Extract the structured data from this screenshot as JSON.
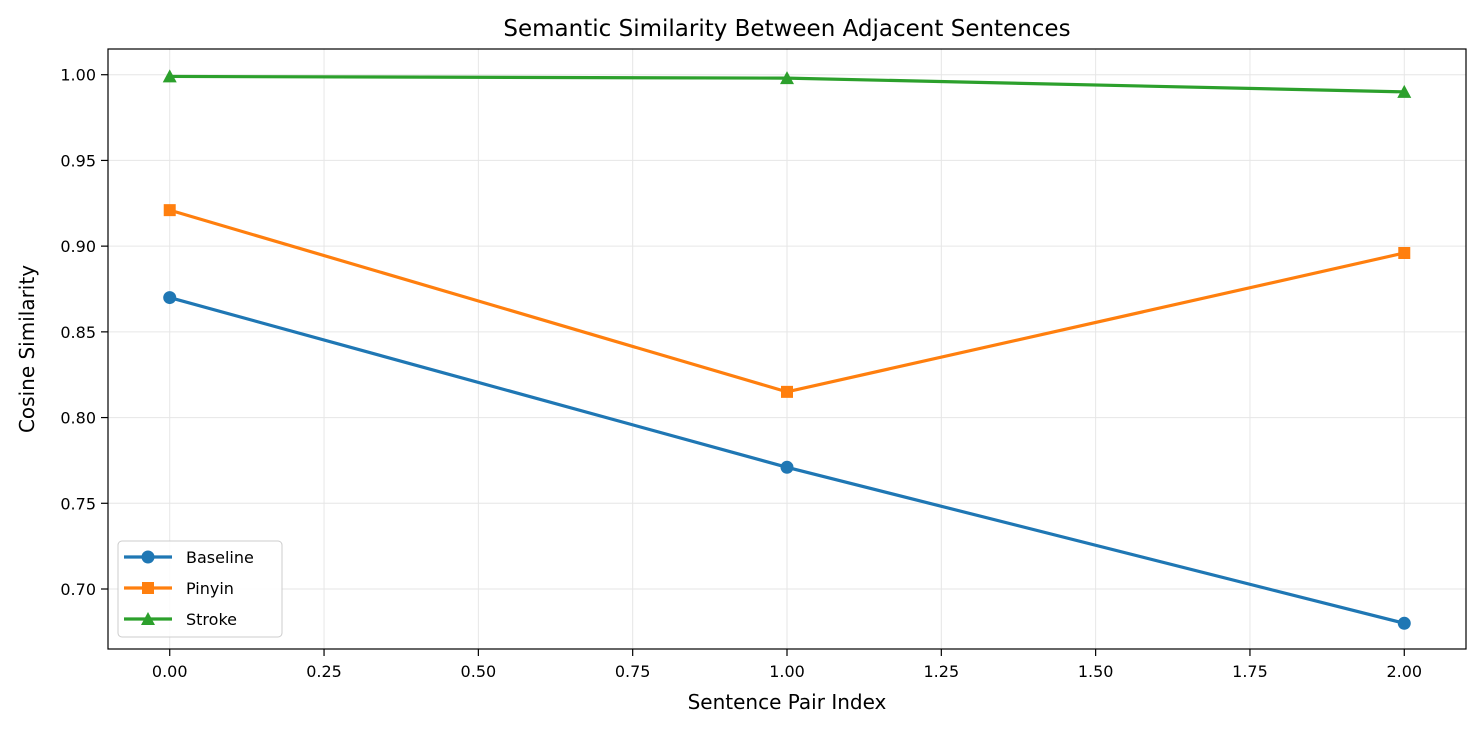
{
  "chart_data": {
    "type": "line",
    "title": "Semantic Similarity Between Adjacent Sentences",
    "xlabel": "Sentence Pair Index",
    "ylabel": "Cosine Similarity",
    "x": [
      0,
      1,
      2
    ],
    "xlim": [
      -0.1,
      2.1
    ],
    "ylim": [
      0.665,
      1.015
    ],
    "xticks": [
      0,
      0.25,
      0.5,
      0.75,
      1.0,
      1.25,
      1.5,
      1.75,
      2.0
    ],
    "xtick_labels": [
      "0.00",
      "0.25",
      "0.50",
      "0.75",
      "1.00",
      "1.25",
      "1.50",
      "1.75",
      "2.00"
    ],
    "yticks": [
      0.7,
      0.75,
      0.8,
      0.85,
      0.9,
      0.95,
      1.0
    ],
    "ytick_labels": [
      "0.70",
      "0.75",
      "0.80",
      "0.85",
      "0.90",
      "0.95",
      "1.00"
    ],
    "grid": true,
    "legend_position": "lower-left",
    "series": [
      {
        "name": "Baseline",
        "values": [
          0.87,
          0.771,
          0.68
        ],
        "color": "#1f77b4",
        "marker": "circle"
      },
      {
        "name": "Pinyin",
        "values": [
          0.921,
          0.815,
          0.896
        ],
        "color": "#ff7f0e",
        "marker": "square"
      },
      {
        "name": "Stroke",
        "values": [
          0.999,
          0.998,
          0.99
        ],
        "color": "#2ca02c",
        "marker": "triangle"
      }
    ]
  }
}
